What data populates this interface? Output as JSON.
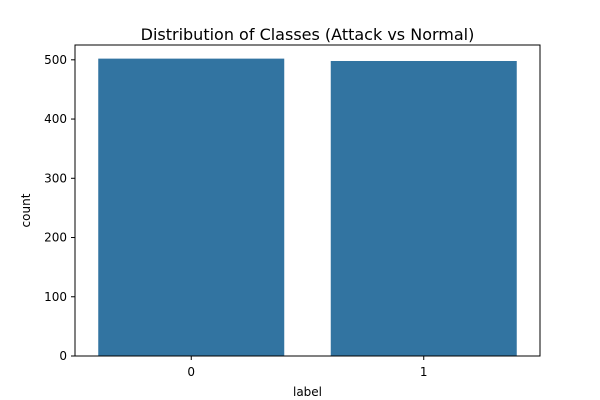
{
  "chart_data": {
    "type": "bar",
    "title": "Distribution of Classes (Attack vs Normal)",
    "xlabel": "label",
    "ylabel": "count",
    "categories": [
      "0",
      "1"
    ],
    "values": [
      502,
      498
    ],
    "ylim": [
      0,
      525
    ],
    "yticks": [
      0,
      100,
      200,
      300,
      400,
      500
    ],
    "grid": false,
    "legend": "none",
    "bar_color": "#3274a1"
  }
}
